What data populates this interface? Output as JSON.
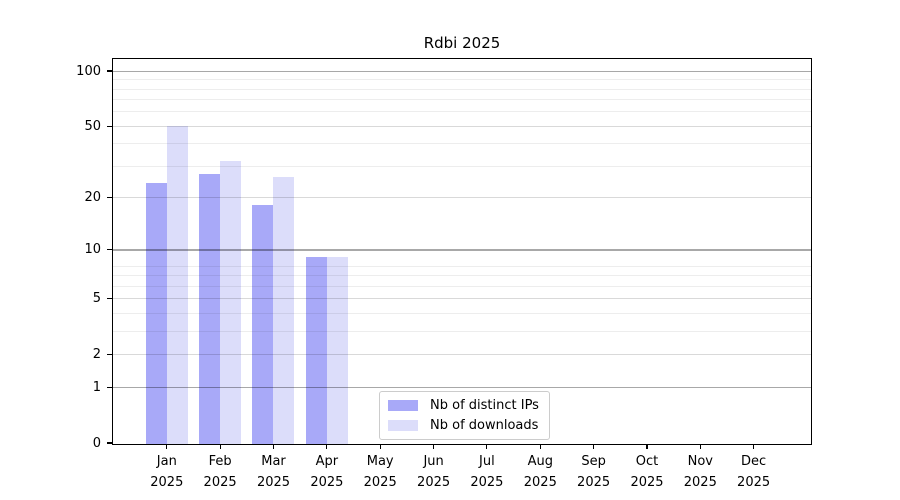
{
  "chart_data": {
    "type": "bar",
    "title": "Rdbi 2025",
    "categories": [
      "Jan",
      "Feb",
      "Mar",
      "Apr",
      "May",
      "Jun",
      "Jul",
      "Aug",
      "Sep",
      "Oct",
      "Nov",
      "Dec"
    ],
    "year_label": "2025",
    "series": [
      {
        "name": "Nb of distinct IPs",
        "color": "#a8a9f8",
        "values": [
          24,
          27,
          18,
          9,
          0,
          0,
          0,
          0,
          0,
          0,
          0,
          0
        ]
      },
      {
        "name": "Nb of downloads",
        "color": "#dcddfa",
        "values": [
          50,
          32,
          26,
          9,
          0,
          0,
          0,
          0,
          0,
          0,
          0,
          0
        ]
      }
    ],
    "xlabel": "",
    "ylabel": "",
    "yscale": "log(1+x)",
    "ylim": [
      0,
      116
    ],
    "y_major_ticks": [
      0,
      1,
      2,
      5,
      10,
      20,
      50,
      100
    ],
    "y_emphasized_ticks": [
      1,
      10,
      100
    ],
    "y_minor_gridlines": [
      3,
      4,
      6,
      7,
      8,
      30,
      40,
      60,
      70,
      80,
      90
    ],
    "grid": true,
    "legend_position": "lower-center-inside"
  },
  "colors": {
    "background": "#ffffff",
    "spine": "#000000",
    "grid_strong": "rgba(0,0,0,0.34)",
    "grid_mid": "rgba(0,0,0,0.15)",
    "grid_minor": "rgba(0,0,0,0.07)",
    "legend_border": "#cccccc",
    "text": "#000000"
  }
}
